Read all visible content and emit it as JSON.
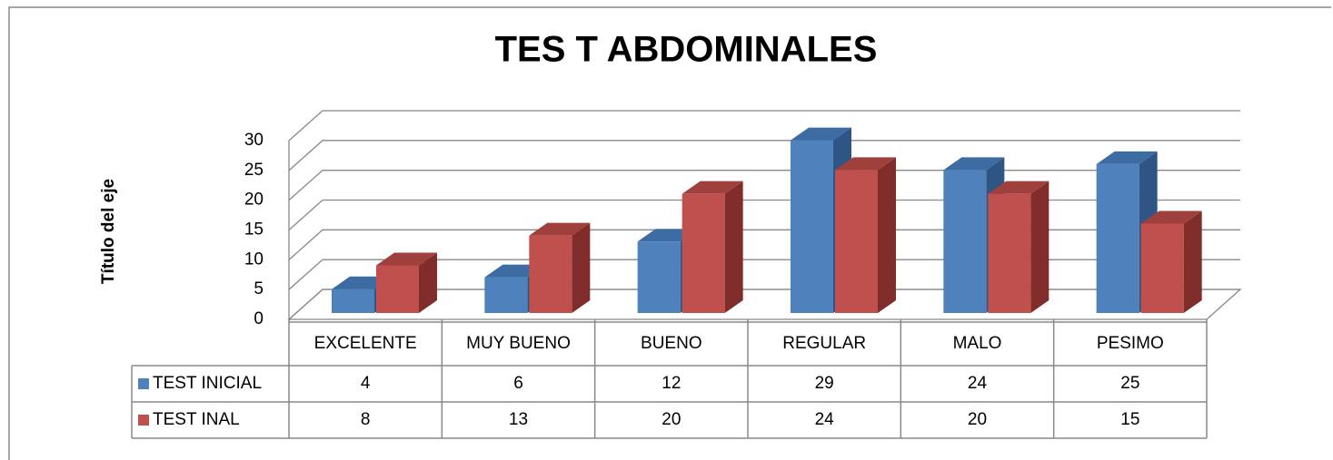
{
  "chart_data": {
    "type": "bar",
    "title": "TES T ABDOMINALES",
    "y_axis_title": "Título del eje",
    "categories": [
      "EXCELENTE",
      "MUY BUENO",
      "BUENO",
      "REGULAR",
      "MALO",
      "PESIMO"
    ],
    "series": [
      {
        "name": "TEST INICIAL",
        "color": "#4f81bd",
        "side_color": "#2f5584",
        "top_color": "#3d6ca3",
        "values": [
          4,
          6,
          12,
          29,
          24,
          25
        ]
      },
      {
        "name": "TEST INAL",
        "color": "#c0504d",
        "side_color": "#7f2c2a",
        "top_color": "#a0403d",
        "values": [
          8,
          13,
          20,
          24,
          20,
          15
        ]
      }
    ],
    "ylim": [
      0,
      30
    ],
    "yticks": [
      0,
      5,
      10,
      15,
      20,
      25,
      30
    ],
    "grid": true,
    "data_table": true
  }
}
